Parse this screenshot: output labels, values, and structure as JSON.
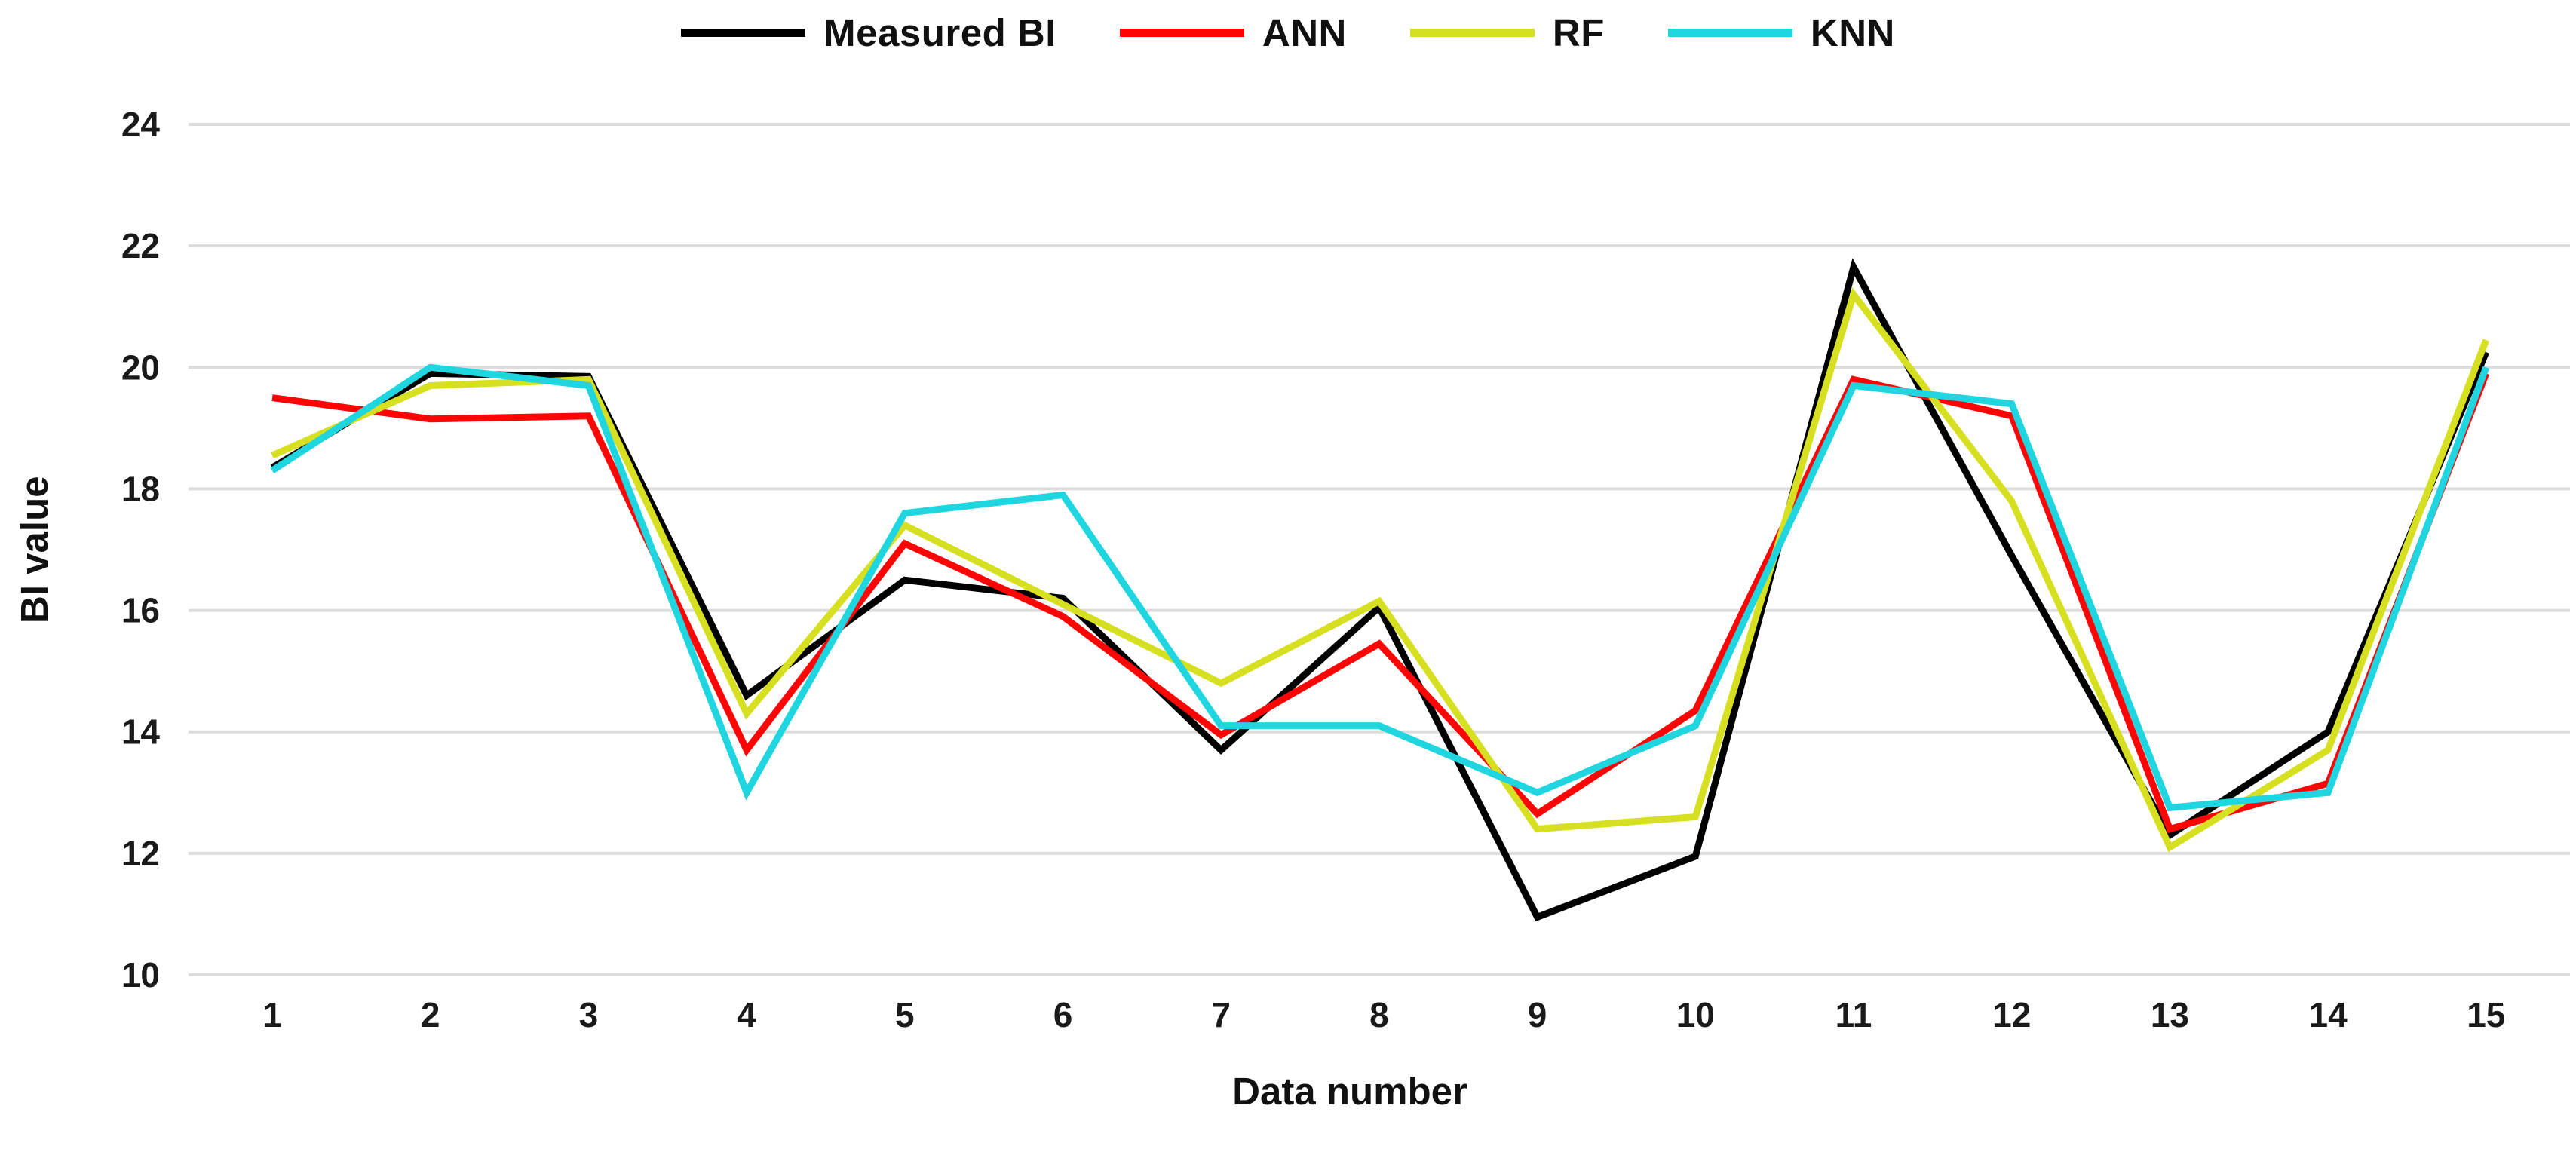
{
  "chart_data": {
    "type": "line",
    "x": [
      1,
      2,
      3,
      4,
      5,
      6,
      7,
      8,
      9,
      10,
      11,
      12,
      13,
      14,
      15
    ],
    "series": [
      {
        "name": "Measured BI",
        "color": "#000000",
        "values": [
          18.35,
          19.9,
          19.85,
          14.6,
          16.5,
          16.2,
          13.7,
          16.05,
          10.95,
          11.95,
          21.65,
          16.9,
          12.3,
          14.0,
          20.25
        ]
      },
      {
        "name": "ANN",
        "color": "#FE0505",
        "values": [
          19.5,
          19.15,
          19.2,
          13.7,
          17.1,
          15.9,
          13.95,
          15.45,
          12.65,
          14.35,
          19.8,
          19.2,
          12.4,
          13.15,
          19.9
        ]
      },
      {
        "name": "RF",
        "color": "#D6E021",
        "values": [
          18.55,
          19.7,
          19.8,
          14.3,
          17.4,
          16.1,
          14.8,
          16.15,
          12.4,
          12.6,
          21.2,
          17.8,
          12.1,
          13.7,
          20.45
        ]
      },
      {
        "name": "KNN",
        "color": "#1ED5E0",
        "values": [
          18.3,
          20.0,
          19.7,
          13.0,
          17.6,
          17.9,
          14.1,
          14.1,
          13.0,
          14.1,
          19.7,
          19.4,
          12.75,
          13.0,
          20.0
        ]
      }
    ],
    "title": "",
    "xlabel": "Data number",
    "ylabel": "BI value",
    "ylim": [
      10,
      24
    ],
    "yticks": [
      10,
      12,
      14,
      16,
      18,
      20,
      22,
      24
    ],
    "grid": true,
    "legend_position": "top"
  },
  "colors": {
    "gridline": "#DCDCDC",
    "tick_text": "#1A1A1A",
    "background": "#FFFFFF"
  }
}
